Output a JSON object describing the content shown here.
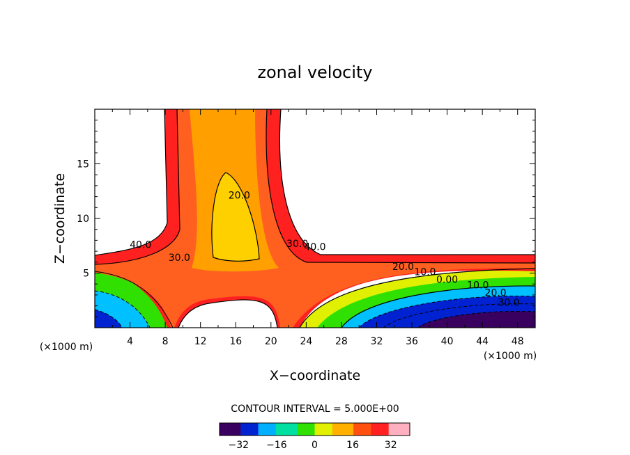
{
  "chart_data": {
    "type": "contour",
    "title": "zonal velocity",
    "xlabel": "X−coordinate",
    "ylabel": "Z−coordinate",
    "x_unit_label": "(×1000 m)",
    "z_unit_label": "(×1000 m)",
    "x_ticks": [
      "4",
      "8",
      "12",
      "16",
      "20",
      "24",
      "28",
      "32",
      "36",
      "40",
      "44",
      "48"
    ],
    "y_ticks": [
      "5",
      "10",
      "15"
    ],
    "xlim": [
      0,
      50
    ],
    "ylim": [
      0,
      20
    ],
    "contour_interval_text": "CONTOUR INTERVAL = 5.000E+00",
    "contour_labels": [
      {
        "text": "40.0",
        "x": 5.2,
        "z": 7.3
      },
      {
        "text": "30.0",
        "x": 9.6,
        "z": 6.1
      },
      {
        "text": "20.0",
        "x": 16.4,
        "z": 11.8
      },
      {
        "text": "40.0",
        "x": 25.0,
        "z": 7.1
      },
      {
        "text": "30.0",
        "x": 23.0,
        "z": 7.4
      },
      {
        "text": "20.0",
        "x": 35.0,
        "z": 5.3
      },
      {
        "text": "10.0",
        "x": 37.5,
        "z": 4.8
      },
      {
        "text": "0.00",
        "x": 40.0,
        "z": 4.1
      },
      {
        "text": "10.0",
        "x": 43.5,
        "z": 3.6
      },
      {
        "text": "20.0",
        "x": 45.5,
        "z": 2.9
      },
      {
        "text": "30.0",
        "x": 47.0,
        "z": 2.0
      }
    ],
    "colorbar": {
      "min": -40,
      "max": 40,
      "tick_labels": [
        "−32",
        "−16",
        "0",
        "16",
        "32"
      ],
      "tick_values": [
        -32,
        -16,
        0,
        16,
        32
      ]
    },
    "colormap": [
      "#3a0060",
      "#0022d0",
      "#00b0ff",
      "#00e0a0",
      "#30e000",
      "#e0f000",
      "#ffb000",
      "#ff5010",
      "#ff2020",
      "#ffb0c0"
    ]
  }
}
